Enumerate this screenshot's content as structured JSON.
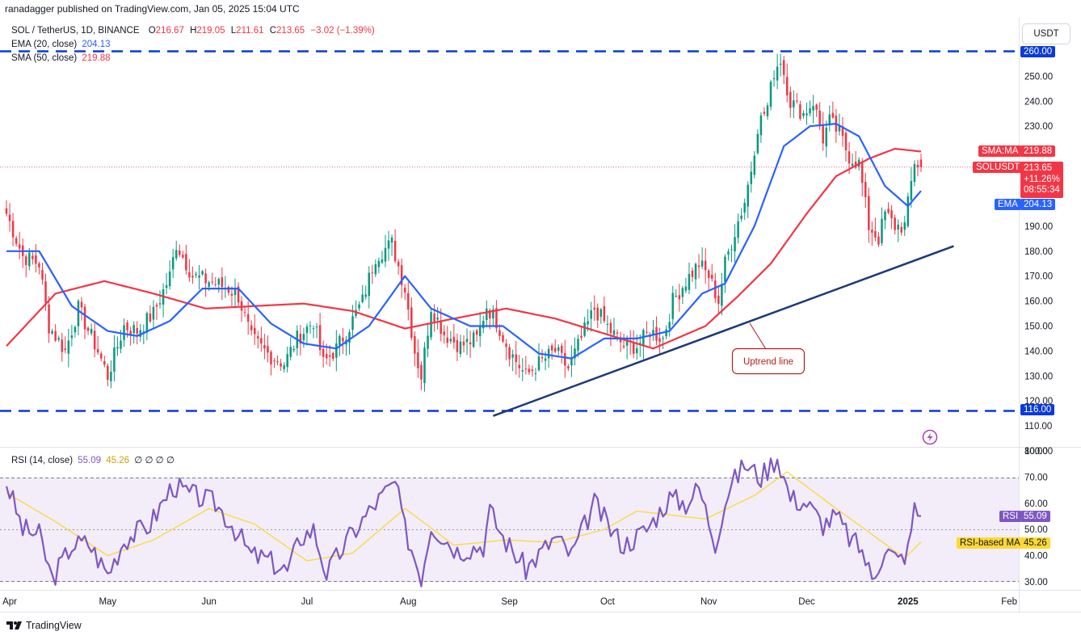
{
  "header": {
    "published": "ranadagger published on TradingView.com, Jan 05, 2025 15:04 UTC"
  },
  "legend": {
    "symbol": "SOL / TetherUS, 1D, BINANCE",
    "ohlc": {
      "o_label": "O",
      "o": "216.67",
      "h_label": "H",
      "h": "219.05",
      "l_label": "L",
      "l": "211.61",
      "c_label": "C",
      "c": "213.65",
      "change": "−3.02 (−1.39%)"
    },
    "ema_label": "EMA (20, close)",
    "ema_value": "204.13",
    "sma_label": "SMA (50, close)",
    "sma_value": "219.88",
    "rsi_label": "RSI (14, close)",
    "rsi_value": "55.09",
    "rsi_ma_value": "45.26",
    "rsi_extra": "∅ ∅ ∅ ∅"
  },
  "currency_button": "USDT",
  "badges": {
    "resistance": "260.00",
    "support": "116.00",
    "sma_tag": "SMA:MA",
    "sma_price": "219.88",
    "sol_tag": "SOLUSDT",
    "sol_price": "213.65",
    "sol_change": "+11.26%",
    "sol_countdown": "08:55:34",
    "ema_tag": "EMA",
    "ema_price": "204.13",
    "rsi_tag": "RSI",
    "rsi_val": "55.09",
    "rsi_ma_tag": "RSI-based MA",
    "rsi_ma_val": "45.26"
  },
  "annotation": "Uptrend line",
  "footer_logo": "TradingView",
  "colors": {
    "up": "#089981",
    "down": "#f23645",
    "ema": "#2962ff",
    "sma": "#f23645",
    "rsi": "#7e57c2",
    "rsi_ma": "#fdd835",
    "levels": "#0b3ad6",
    "trend": "#1c3a7a",
    "rsi_band": "#ede7f6"
  },
  "chart_data": {
    "type": "candlestick",
    "title": "SOL / TetherUS, 1D, BINANCE",
    "ylim": [
      100,
      270
    ],
    "price_ticks": [
      "260.00",
      "250.00",
      "240.00",
      "230.00",
      "220.00",
      "210.00",
      "200.00",
      "190.00",
      "180.00",
      "170.00",
      "160.00",
      "150.00",
      "140.00",
      "130.00",
      "120.00",
      "110.00",
      "100.00"
    ],
    "x_ticks": [
      "Apr",
      "May",
      "Jun",
      "Jul",
      "Aug",
      "Sep",
      "Oct",
      "Nov",
      "Dec",
      "2025",
      "Feb"
    ],
    "horizontal_levels": [
      260,
      116
    ],
    "uptrend_line": {
      "from": [
        "2024-08-27",
        114
      ],
      "to": [
        "2025-01-15",
        182
      ]
    },
    "close_anchors": [
      [
        "2024-03-31",
        195
      ],
      [
        "2024-04-05",
        178
      ],
      [
        "2024-04-10",
        175
      ],
      [
        "2024-04-13",
        150
      ],
      [
        "2024-04-18",
        140
      ],
      [
        "2024-04-22",
        157
      ],
      [
        "2024-04-28",
        140
      ],
      [
        "2024-05-01",
        130
      ],
      [
        "2024-05-06",
        150
      ],
      [
        "2024-05-10",
        148
      ],
      [
        "2024-05-15",
        155
      ],
      [
        "2024-05-20",
        170
      ],
      [
        "2024-05-22",
        183
      ],
      [
        "2024-05-27",
        170
      ],
      [
        "2024-06-01",
        168
      ],
      [
        "2024-06-07",
        165
      ],
      [
        "2024-06-10",
        162
      ],
      [
        "2024-06-14",
        145
      ],
      [
        "2024-06-18",
        140
      ],
      [
        "2024-06-20",
        138
      ],
      [
        "2024-06-24",
        135
      ],
      [
        "2024-06-28",
        145
      ],
      [
        "2024-07-03",
        152
      ],
      [
        "2024-07-06",
        135
      ],
      [
        "2024-07-10",
        141
      ],
      [
        "2024-07-14",
        150
      ],
      [
        "2024-07-18",
        160
      ],
      [
        "2024-07-22",
        178
      ],
      [
        "2024-07-27",
        183
      ],
      [
        "2024-07-31",
        165
      ],
      [
        "2024-08-03",
        140
      ],
      [
        "2024-08-05",
        130
      ],
      [
        "2024-08-08",
        158
      ],
      [
        "2024-08-12",
        147
      ],
      [
        "2024-08-17",
        142
      ],
      [
        "2024-08-22",
        145
      ],
      [
        "2024-08-25",
        158
      ],
      [
        "2024-08-28",
        152
      ],
      [
        "2024-09-01",
        140
      ],
      [
        "2024-09-06",
        130
      ],
      [
        "2024-09-10",
        135
      ],
      [
        "2024-09-15",
        140
      ],
      [
        "2024-09-19",
        133
      ],
      [
        "2024-09-23",
        145
      ],
      [
        "2024-09-27",
        157
      ],
      [
        "2024-10-02",
        148
      ],
      [
        "2024-10-06",
        142
      ],
      [
        "2024-10-10",
        142
      ],
      [
        "2024-10-14",
        148
      ],
      [
        "2024-10-18",
        145
      ],
      [
        "2024-10-21",
        160
      ],
      [
        "2024-10-25",
        168
      ],
      [
        "2024-10-29",
        175
      ],
      [
        "2024-11-01",
        170
      ],
      [
        "2024-11-04",
        160
      ],
      [
        "2024-11-06",
        175
      ],
      [
        "2024-11-09",
        188
      ],
      [
        "2024-11-12",
        200
      ],
      [
        "2024-11-14",
        213
      ],
      [
        "2024-11-16",
        230
      ],
      [
        "2024-11-19",
        238
      ],
      [
        "2024-11-21",
        252
      ],
      [
        "2024-11-23",
        257
      ],
      [
        "2024-11-26",
        240
      ],
      [
        "2024-11-30",
        235
      ],
      [
        "2024-12-03",
        240
      ],
      [
        "2024-12-06",
        225
      ],
      [
        "2024-12-08",
        232
      ],
      [
        "2024-12-11",
        227
      ],
      [
        "2024-12-14",
        218
      ],
      [
        "2024-12-17",
        215
      ],
      [
        "2024-12-20",
        190
      ],
      [
        "2024-12-23",
        185
      ],
      [
        "2024-12-25",
        195
      ],
      [
        "2024-12-28",
        190
      ],
      [
        "2024-12-31",
        190
      ],
      [
        "2025-01-03",
        216
      ],
      [
        "2025-01-05",
        213.65
      ]
    ],
    "ema20_anchors": [
      [
        "2024-03-31",
        180
      ],
      [
        "2024-04-10",
        180
      ],
      [
        "2024-04-20",
        158
      ],
      [
        "2024-05-01",
        148
      ],
      [
        "2024-05-10",
        146
      ],
      [
        "2024-05-20",
        152
      ],
      [
        "2024-05-30",
        165
      ],
      [
        "2024-06-10",
        165
      ],
      [
        "2024-06-20",
        151
      ],
      [
        "2024-06-30",
        143
      ],
      [
        "2024-07-10",
        141
      ],
      [
        "2024-07-20",
        150
      ],
      [
        "2024-07-31",
        170
      ],
      [
        "2024-08-08",
        157
      ],
      [
        "2024-08-20",
        150
      ],
      [
        "2024-08-30",
        150
      ],
      [
        "2024-09-10",
        139
      ],
      [
        "2024-09-20",
        137
      ],
      [
        "2024-09-30",
        145
      ],
      [
        "2024-10-10",
        145
      ],
      [
        "2024-10-20",
        148
      ],
      [
        "2024-10-30",
        163
      ],
      [
        "2024-11-06",
        167
      ],
      [
        "2024-11-15",
        190
      ],
      [
        "2024-11-24",
        222
      ],
      [
        "2024-12-02",
        230
      ],
      [
        "2024-12-10",
        231
      ],
      [
        "2024-12-17",
        226
      ],
      [
        "2024-12-25",
        206
      ],
      [
        "2025-01-01",
        198
      ],
      [
        "2025-01-05",
        204.13
      ]
    ],
    "sma50_anchors": [
      [
        "2024-03-31",
        142
      ],
      [
        "2024-04-15",
        163
      ],
      [
        "2024-04-30",
        168
      ],
      [
        "2024-05-15",
        163
      ],
      [
        "2024-05-31",
        157
      ],
      [
        "2024-06-15",
        158
      ],
      [
        "2024-06-30",
        159
      ],
      [
        "2024-07-15",
        156
      ],
      [
        "2024-07-31",
        149
      ],
      [
        "2024-08-15",
        153
      ],
      [
        "2024-08-31",
        157
      ],
      [
        "2024-09-15",
        153
      ],
      [
        "2024-09-30",
        147
      ],
      [
        "2024-10-15",
        141
      ],
      [
        "2024-10-31",
        150
      ],
      [
        "2024-11-10",
        162
      ],
      [
        "2024-11-20",
        175
      ],
      [
        "2024-12-01",
        195
      ],
      [
        "2024-12-10",
        210
      ],
      [
        "2024-12-20",
        217
      ],
      [
        "2024-12-28",
        221
      ],
      [
        "2025-01-05",
        219.88
      ]
    ],
    "rsi": {
      "label": "RSI (14, close)",
      "ylim": [
        27,
        82
      ],
      "levels": [
        70,
        50,
        30
      ],
      "ticks": [
        "80.00",
        "70.00",
        "60.00",
        "50.00",
        "40.00",
        "30.00"
      ],
      "rsi_anchors": [
        [
          "2024-03-31",
          68
        ],
        [
          "2024-04-05",
          50
        ],
        [
          "2024-04-10",
          48
        ],
        [
          "2024-04-14",
          31
        ],
        [
          "2024-04-20",
          44
        ],
        [
          "2024-04-25",
          45
        ],
        [
          "2024-05-01",
          33
        ],
        [
          "2024-05-06",
          46
        ],
        [
          "2024-05-14",
          52
        ],
        [
          "2024-05-21",
          67
        ],
        [
          "2024-05-25",
          64
        ],
        [
          "2024-06-03",
          60
        ],
        [
          "2024-06-08",
          52
        ],
        [
          "2024-06-14",
          40
        ],
        [
          "2024-06-18",
          39
        ],
        [
          "2024-06-25",
          34
        ],
        [
          "2024-06-29",
          47
        ],
        [
          "2024-07-03",
          50
        ],
        [
          "2024-07-07",
          33
        ],
        [
          "2024-07-14",
          47
        ],
        [
          "2024-07-22",
          60
        ],
        [
          "2024-07-28",
          68
        ],
        [
          "2024-07-31",
          50
        ],
        [
          "2024-08-05",
          32
        ],
        [
          "2024-08-08",
          52
        ],
        [
          "2024-08-16",
          42
        ],
        [
          "2024-08-24",
          44
        ],
        [
          "2024-08-26",
          57
        ],
        [
          "2024-08-30",
          47
        ],
        [
          "2024-09-06",
          35
        ],
        [
          "2024-09-15",
          47
        ],
        [
          "2024-09-20",
          40
        ],
        [
          "2024-09-27",
          60
        ],
        [
          "2024-10-02",
          50
        ],
        [
          "2024-10-06",
          44
        ],
        [
          "2024-10-13",
          50
        ],
        [
          "2024-10-20",
          62
        ],
        [
          "2024-10-25",
          60
        ],
        [
          "2024-10-29",
          66
        ],
        [
          "2024-11-03",
          45
        ],
        [
          "2024-11-07",
          65
        ],
        [
          "2024-11-12",
          75
        ],
        [
          "2024-11-17",
          70
        ],
        [
          "2024-11-22",
          78
        ],
        [
          "2024-11-26",
          62
        ],
        [
          "2024-12-01",
          60
        ],
        [
          "2024-12-06",
          52
        ],
        [
          "2024-12-10",
          55
        ],
        [
          "2024-12-14",
          47
        ],
        [
          "2024-12-18",
          42
        ],
        [
          "2024-12-21",
          31
        ],
        [
          "2024-12-25",
          43
        ],
        [
          "2024-12-29",
          38
        ],
        [
          "2025-01-01",
          42
        ],
        [
          "2025-01-03",
          58
        ],
        [
          "2025-01-05",
          55.09
        ]
      ],
      "rsi_ma_anchors": [
        [
          "2024-03-31",
          64
        ],
        [
          "2024-04-15",
          53
        ],
        [
          "2024-05-01",
          40
        ],
        [
          "2024-05-15",
          46
        ],
        [
          "2024-06-01",
          58
        ],
        [
          "2024-06-15",
          52
        ],
        [
          "2024-07-01",
          38
        ],
        [
          "2024-07-15",
          41
        ],
        [
          "2024-07-31",
          58
        ],
        [
          "2024-08-15",
          44
        ],
        [
          "2024-08-31",
          46
        ],
        [
          "2024-09-15",
          45
        ],
        [
          "2024-09-30",
          50
        ],
        [
          "2024-10-10",
          57
        ],
        [
          "2024-10-31",
          54
        ],
        [
          "2024-11-15",
          63
        ],
        [
          "2024-11-25",
          72
        ],
        [
          "2024-12-10",
          58
        ],
        [
          "2024-12-20",
          49
        ],
        [
          "2024-12-31",
          39
        ],
        [
          "2025-01-05",
          45.26
        ]
      ]
    }
  }
}
